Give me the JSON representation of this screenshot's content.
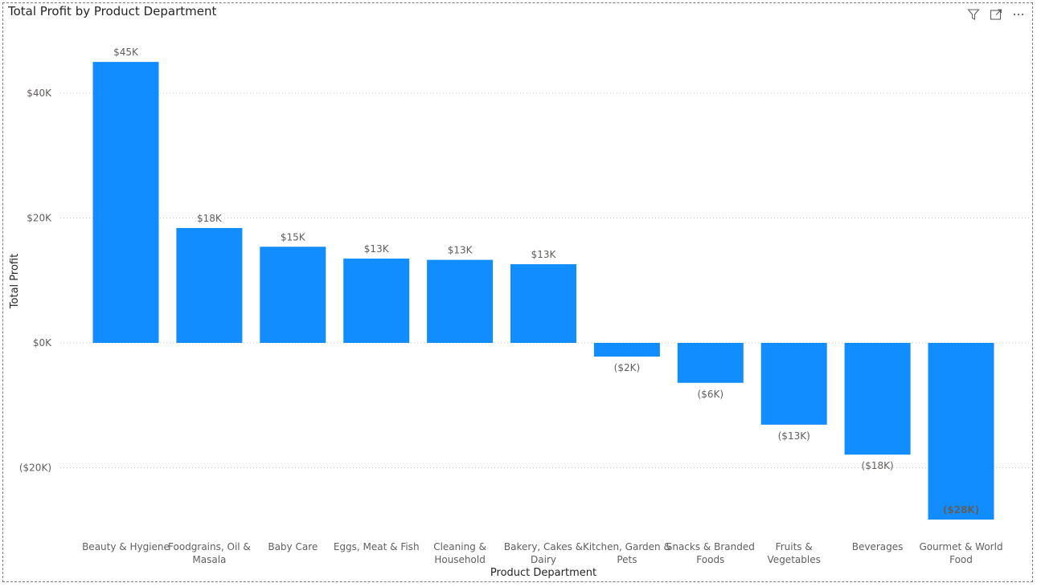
{
  "header": {
    "icons": [
      "filter-icon",
      "focus-mode-icon",
      "more-options-icon"
    ]
  },
  "colors": {
    "bar": "#118DFF",
    "inside_label": "#ffffff",
    "gridline": "#c8c6c4",
    "text": "#605e5c"
  },
  "chart_data": {
    "type": "bar",
    "title": "Total Profit by Product Department",
    "xlabel": "Product Department",
    "ylabel": "Total Profit",
    "categories": [
      [
        "Beauty & Hygiene"
      ],
      [
        "Foodgrains, Oil &",
        "Masala"
      ],
      [
        "Baby Care"
      ],
      [
        "Eggs, Meat & Fish"
      ],
      [
        "Cleaning &",
        "Household"
      ],
      [
        "Bakery, Cakes &",
        "Dairy"
      ],
      [
        "Kitchen, Garden &",
        "Pets"
      ],
      [
        "Snacks & Branded",
        "Foods"
      ],
      [
        "Fruits &",
        "Vegetables"
      ],
      [
        "Beverages"
      ],
      [
        "Gourmet & World",
        "Food"
      ]
    ],
    "values": [
      45000,
      18400,
      15400,
      13500,
      13300,
      12600,
      -2200,
      -6400,
      -13100,
      -17900,
      -28300
    ],
    "data_labels": [
      "$45K",
      "$18K",
      "$15K",
      "$13K",
      "$13K",
      "$13K",
      "($2K)",
      "($6K)",
      "($13K)",
      "($18K)",
      "($28K)"
    ],
    "label_inside": [
      false,
      false,
      false,
      false,
      false,
      false,
      false,
      false,
      false,
      false,
      true
    ],
    "yticks": [
      40000,
      20000,
      0,
      -20000
    ],
    "ytick_labels": [
      "$40K",
      "$20K",
      "$0K",
      "($20K)"
    ],
    "ylim": [
      -30000,
      50000
    ],
    "grid": true,
    "legend": "none"
  }
}
